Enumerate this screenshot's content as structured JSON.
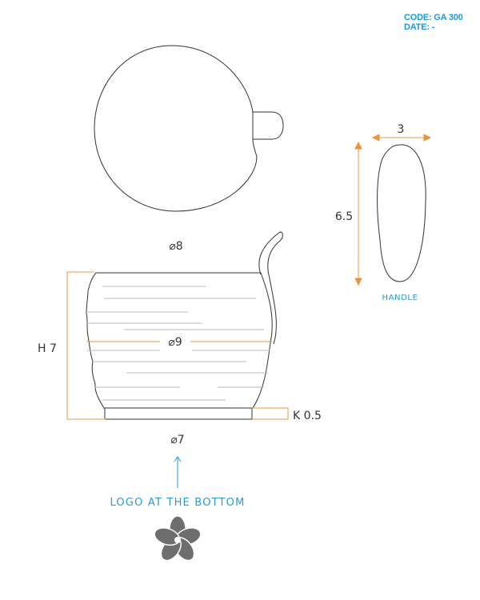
{
  "header": {
    "code": "CODE: GA 300",
    "date": "DATE: -"
  },
  "dimensions": {
    "lid_diameter": "⌀8",
    "body_diameter": "⌀9",
    "base_diameter": "⌀7",
    "height": "H 7",
    "foot": "K 0.5",
    "handle_width": "3",
    "handle_height": "6.5"
  },
  "labels": {
    "handle": "HANDLE",
    "logo_note": "LOGO AT THE BOTTOM"
  },
  "colors": {
    "accent": "#2a9bd7",
    "dimension_line": "#e8953d",
    "outline": "#333333",
    "groove": "#bbbbbb",
    "logo": "#6e6e6e"
  },
  "icons": {
    "arrow": "arrow-up-icon",
    "logo": "frangipani-flower-icon"
  }
}
